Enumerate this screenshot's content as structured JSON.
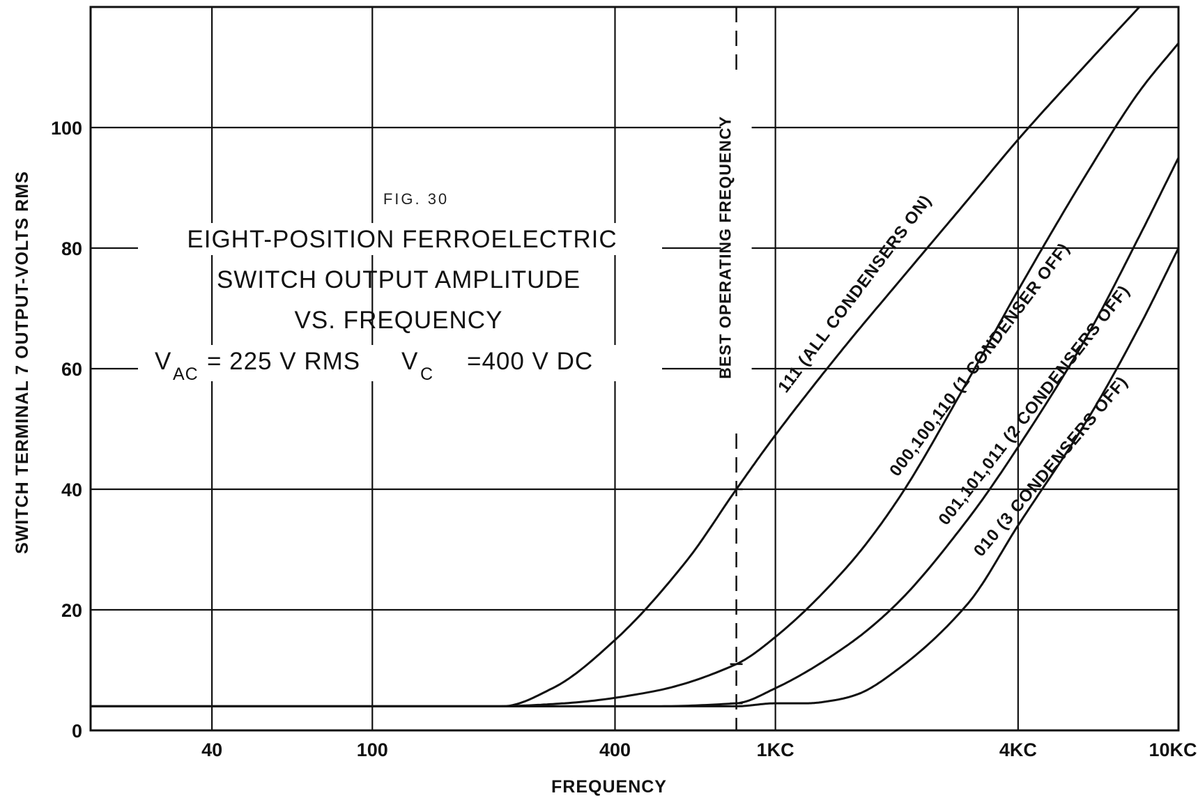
{
  "chart_data": {
    "type": "line",
    "figure_label": "FIG. 30",
    "title_lines": [
      "EIGHT-POSITION FERROELECTRIC",
      "SWITCH OUTPUT AMPLITUDE",
      "VS. FREQUENCY"
    ],
    "conditions": {
      "vac": {
        "symbol": "V",
        "sub": "AC",
        "value": "= 225 V RMS"
      },
      "vc": {
        "symbol": "V",
        "sub": "C",
        "value": "=400 V  DC"
      }
    },
    "xlabel": "FREQUENCY",
    "ylabel": "SWITCH TERMINAL 7 OUTPUT-VOLTS RMS",
    "x_scale": "log",
    "xlim": [
      20,
      10000
    ],
    "ylim": [
      0,
      120
    ],
    "x_ticks": [
      {
        "value": 40,
        "label": "40"
      },
      {
        "value": 100,
        "label": "100"
      },
      {
        "value": 400,
        "label": "400"
      },
      {
        "value": 1000,
        "label": "1KC"
      },
      {
        "value": 4000,
        "label": "4KC"
      },
      {
        "value": 10000,
        "label": "10KC"
      }
    ],
    "y_ticks": [
      0,
      20,
      40,
      60,
      80,
      100
    ],
    "x_gridlines": [
      40,
      100,
      400,
      1000,
      4000
    ],
    "y_gridlines": [
      20,
      40,
      60,
      80,
      100
    ],
    "grid": true,
    "reference_line": {
      "x": 800,
      "label": "BEST OPERATING FREQUENCY",
      "style": "dashed"
    },
    "marked_points": [
      {
        "x": 800,
        "y": 40
      },
      {
        "x": 800,
        "y": 11
      },
      {
        "x": 800,
        "y": 4.5
      }
    ],
    "series": [
      {
        "name": "111 (ALL CONDENSERS ON)",
        "x": [
          20,
          100,
          210,
          280,
          400,
          600,
          800,
          1000,
          1500,
          2000,
          3000,
          4000,
          6000,
          8000
        ],
        "y": [
          4,
          4,
          4,
          7,
          15,
          28,
          40,
          49,
          64,
          74,
          88,
          98,
          111,
          120
        ]
      },
      {
        "name": "000,100,110 (1 CONDENSER OFF)",
        "x": [
          20,
          200,
          300,
          500,
          800,
          1000,
          1500,
          2000,
          3000,
          4000,
          6000,
          8000,
          10000
        ],
        "y": [
          4,
          4,
          4.5,
          6.5,
          11,
          15.5,
          27,
          38,
          58,
          73,
          93,
          106,
          114
        ]
      },
      {
        "name": "001,101,011 (2 CONDENSERS OFF)",
        "x": [
          20,
          500,
          800,
          1000,
          1500,
          2000,
          3000,
          4000,
          6000,
          8000,
          10000
        ],
        "y": [
          4,
          4,
          4.5,
          7,
          14,
          21,
          35,
          47,
          66,
          82,
          95
        ]
      },
      {
        "name": "010 (3 CONDENSERS OFF)",
        "x": [
          20,
          800,
          1000,
          1200,
          1400,
          1600,
          2000,
          3000,
          4000,
          6000,
          8000,
          10000
        ],
        "y": [
          4,
          4,
          4.5,
          4.5,
          5,
          6,
          10,
          21,
          34,
          52,
          67,
          80
        ]
      }
    ]
  }
}
